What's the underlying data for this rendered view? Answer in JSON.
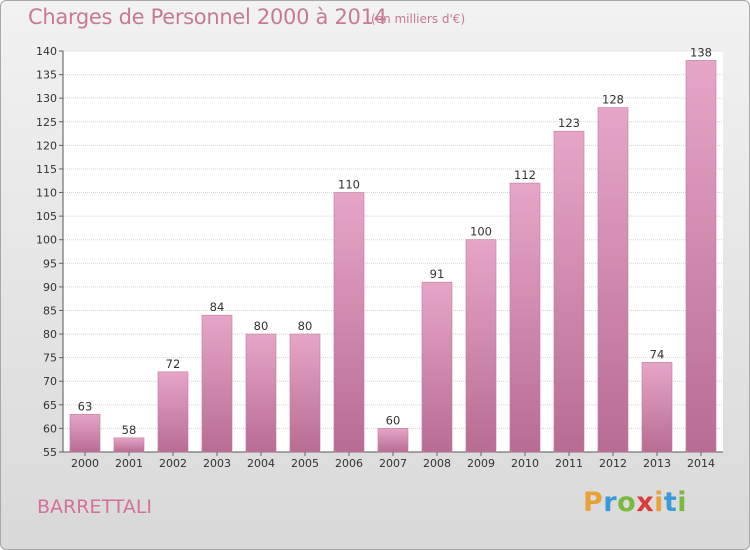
{
  "title": "Charges de Personnel 2000 à 2014",
  "unit": "(en milliers d'€)",
  "place": "BARRETTALI",
  "logo": {
    "letters": [
      "P",
      "r",
      "o",
      "x",
      "i",
      "t",
      "i"
    ],
    "colors": [
      "#e8a23a",
      "#3a9ad9",
      "#7ab83f",
      "#d93a3a",
      "#e8a23a",
      "#3a9ad9",
      "#7ab83f"
    ]
  },
  "chart_data": {
    "type": "bar",
    "categories": [
      "2000",
      "2001",
      "2002",
      "2003",
      "2004",
      "2005",
      "2006",
      "2007",
      "2008",
      "2009",
      "2010",
      "2011",
      "2012",
      "2013",
      "2014"
    ],
    "values": [
      63,
      58,
      72,
      84,
      80,
      80,
      110,
      60,
      91,
      100,
      112,
      123,
      128,
      74,
      138
    ],
    "ylim": [
      55,
      140
    ],
    "yticks": [
      55,
      60,
      65,
      70,
      75,
      80,
      85,
      90,
      95,
      100,
      105,
      110,
      115,
      120,
      125,
      130,
      135,
      140
    ],
    "bar_color": "#d68ab1",
    "grid": true,
    "legend": "none"
  }
}
